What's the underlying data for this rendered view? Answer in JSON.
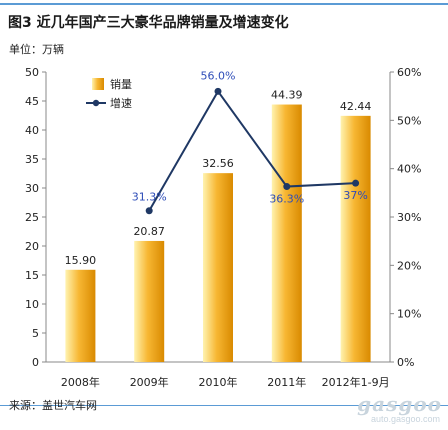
{
  "title": "图3   近几年国产三大豪华品牌销量及增速变化",
  "unit_label": "单位：万辆",
  "source": "来源：盖世汽车网",
  "watermark": {
    "logo": "gasgoo",
    "url": "auto.gasgoo.com"
  },
  "colors": {
    "bar_light": "#fff3b0",
    "bar_mid": "#f7b733",
    "bar_dark": "#d98a00",
    "line": "#1f3864",
    "label_blue": "#2e4db8",
    "rule": "#5b9bd5"
  },
  "chart_data": {
    "type": "bar",
    "categories": [
      "2008年",
      "2009年",
      "2010年",
      "2011年",
      "2012年1-9月"
    ],
    "series": [
      {
        "name": "销量",
        "type": "bar",
        "axis": "left",
        "values": [
          15.9,
          20.87,
          32.56,
          44.39,
          42.44
        ],
        "labels": [
          "15.90",
          "20.87",
          "32.56",
          "44.39",
          "42.44"
        ]
      },
      {
        "name": "增速",
        "type": "line",
        "axis": "right",
        "values": [
          null,
          31.3,
          56.0,
          36.3,
          37.0
        ],
        "labels": [
          "",
          "31.3%",
          "56.0%",
          "36.3%",
          "37%"
        ]
      }
    ],
    "y_left": {
      "min": 0,
      "max": 50,
      "ticks": [
        0,
        5,
        10,
        15,
        20,
        25,
        30,
        35,
        40,
        45,
        50
      ]
    },
    "y_right": {
      "min": 0,
      "max": 60,
      "ticks": [
        "0%",
        "10%",
        "20%",
        "30%",
        "40%",
        "50%",
        "60%"
      ]
    },
    "legend": {
      "placement": "top-left"
    },
    "grid": false
  }
}
